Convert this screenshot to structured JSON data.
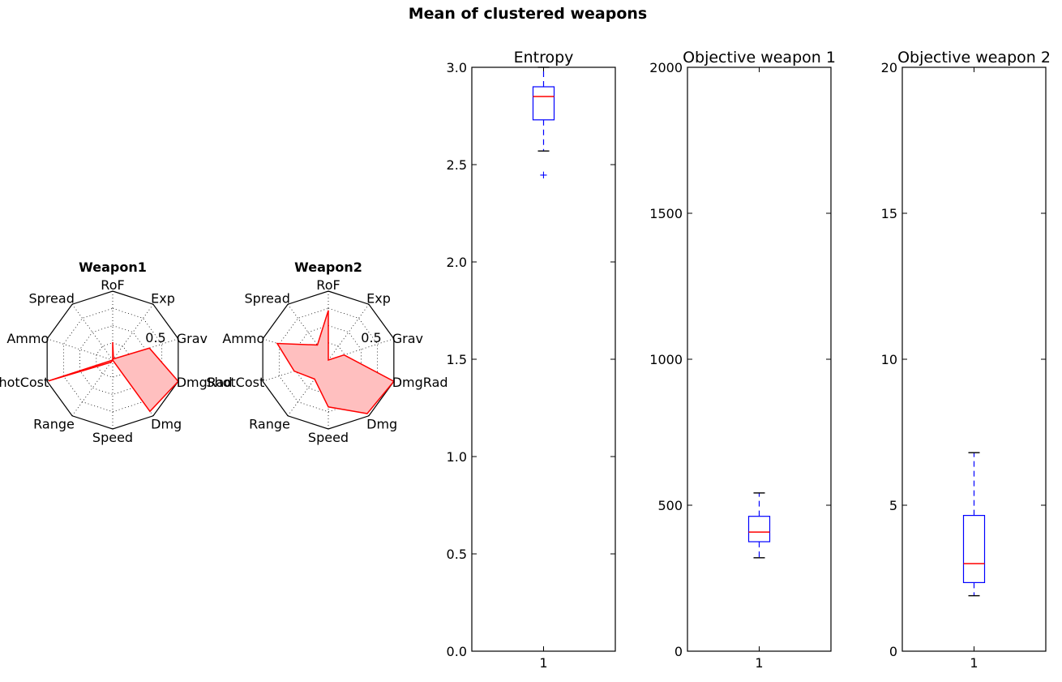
{
  "figure": {
    "suptitle": "Mean of clustered weapons"
  },
  "chart_data": [
    {
      "type": "radar",
      "title": "Weapon1",
      "axes": [
        "RoF",
        "Exp",
        "Grav",
        "DmgRad",
        "Dmg",
        "Speed",
        "Range",
        "ShotCost",
        "Ammo",
        "Spread"
      ],
      "ring_label": "0.5",
      "range": [
        0,
        1
      ],
      "values": [
        0.26,
        0.02,
        0.56,
        1.0,
        0.92,
        0.0,
        0.04,
        0.98,
        0.0,
        0.0
      ],
      "colors": {
        "line": "#ff0000",
        "fill": "#ffbfbf"
      }
    },
    {
      "type": "radar",
      "title": "Weapon2",
      "axes": [
        "RoF",
        "Exp",
        "Grav",
        "DmgRad",
        "Dmg",
        "Speed",
        "Range",
        "ShotCost",
        "Ammo",
        "Spread"
      ],
      "ring_label": "0.5",
      "range": [
        0,
        1
      ],
      "values": [
        0.72,
        0.0,
        0.24,
        1.0,
        0.96,
        0.68,
        0.34,
        0.52,
        0.78,
        0.27
      ],
      "colors": {
        "line": "#ff0000",
        "fill": "#ffbfbf"
      }
    },
    {
      "type": "box",
      "title": "Entropy",
      "categories": [
        "1"
      ],
      "ylim": [
        0,
        3.0
      ],
      "yticks": [
        "0.0",
        "0.5",
        "1.0",
        "1.5",
        "2.0",
        "2.5",
        "3.0"
      ],
      "ytick_values": [
        0,
        0.5,
        1.0,
        1.5,
        2.0,
        2.5,
        3.0
      ],
      "box": {
        "whisker_low": 2.57,
        "q1": 2.73,
        "median": 2.85,
        "q3": 2.9,
        "whisker_high": 3.0,
        "fliers": [
          2.45
        ]
      }
    },
    {
      "type": "box",
      "title": "Objective weapon 1",
      "categories": [
        "1"
      ],
      "ylim": [
        0,
        2000
      ],
      "yticks": [
        "0",
        "500",
        "1000",
        "1500",
        "2000"
      ],
      "ytick_values": [
        0,
        500,
        1000,
        1500,
        2000
      ],
      "box": {
        "whisker_low": 320,
        "q1": 375,
        "median": 408,
        "q3": 462,
        "whisker_high": 542,
        "fliers": []
      }
    },
    {
      "type": "box",
      "title": "Objective weapon 2",
      "categories": [
        "1"
      ],
      "ylim": [
        0,
        20
      ],
      "yticks": [
        "0",
        "5",
        "10",
        "15",
        "20"
      ],
      "ytick_values": [
        0,
        5,
        10,
        15,
        20
      ],
      "box": {
        "whisker_low": 1.9,
        "q1": 2.35,
        "median": 3.0,
        "q3": 4.65,
        "whisker_high": 6.8,
        "fliers": []
      }
    }
  ]
}
